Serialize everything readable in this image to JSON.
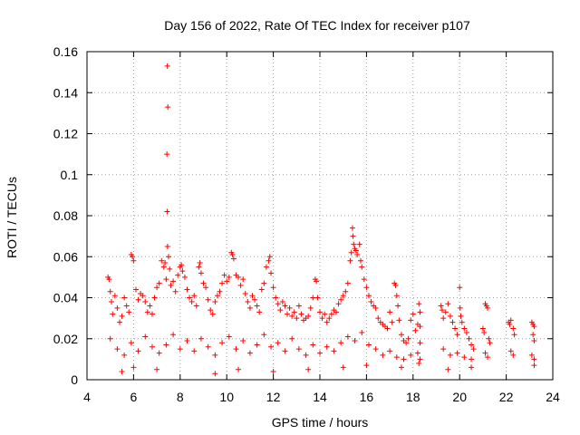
{
  "chart_data": {
    "type": "scatter",
    "title": "Day 156 of 2022, Rate Of TEC Index for receiver p107",
    "xlabel": "GPS time / hours",
    "ylabel": "ROTI / TECUs",
    "xlim": [
      4,
      24
    ],
    "ylim": [
      0,
      0.16
    ],
    "xticks": [
      4,
      6,
      8,
      10,
      12,
      14,
      16,
      18,
      20,
      22,
      24
    ],
    "yticks": [
      0,
      0.02,
      0.04,
      0.06,
      0.08,
      0.1,
      0.12,
      0.14,
      0.16
    ],
    "xtick_labels": [
      "4",
      "6",
      "8",
      "10",
      "12",
      "14",
      "16",
      "18",
      "20",
      "22",
      "24"
    ],
    "ytick_labels": [
      "0",
      "0.02",
      "0.04",
      "0.06",
      "0.08",
      "0.1",
      "0.12",
      "0.14",
      "0.16"
    ],
    "grid": true,
    "marker": "+",
    "color": "#ff0000",
    "series": [
      {
        "name": "ROTI",
        "points": [
          [
            4.9,
            0.05
          ],
          [
            4.95,
            0.049
          ],
          [
            5.0,
            0.043
          ],
          [
            5.05,
            0.038
          ],
          [
            5.1,
            0.032
          ],
          [
            5.2,
            0.041
          ],
          [
            5.3,
            0.035
          ],
          [
            5.4,
            0.028
          ],
          [
            5.5,
            0.031
          ],
          [
            5.6,
            0.04
          ],
          [
            5.7,
            0.036
          ],
          [
            5.8,
            0.033
          ],
          [
            5.9,
            0.061
          ],
          [
            5.95,
            0.06
          ],
          [
            6.0,
            0.058
          ],
          [
            6.1,
            0.044
          ],
          [
            6.2,
            0.039
          ],
          [
            6.3,
            0.042
          ],
          [
            6.4,
            0.041
          ],
          [
            6.5,
            0.038
          ],
          [
            6.6,
            0.033
          ],
          [
            6.7,
            0.036
          ],
          [
            6.8,
            0.032
          ],
          [
            6.9,
            0.04
          ],
          [
            7.0,
            0.045
          ],
          [
            7.1,
            0.047
          ],
          [
            7.2,
            0.058
          ],
          [
            7.3,
            0.055
          ],
          [
            7.35,
            0.057
          ],
          [
            7.4,
            0.049
          ],
          [
            7.45,
            0.153
          ],
          [
            7.47,
            0.133
          ],
          [
            7.43,
            0.11
          ],
          [
            7.44,
            0.082
          ],
          [
            7.46,
            0.065
          ],
          [
            7.5,
            0.06
          ],
          [
            7.55,
            0.054
          ],
          [
            7.6,
            0.046
          ],
          [
            7.7,
            0.048
          ],
          [
            7.8,
            0.043
          ],
          [
            7.9,
            0.051
          ],
          [
            8.0,
            0.055
          ],
          [
            8.05,
            0.056
          ],
          [
            8.1,
            0.053
          ],
          [
            8.2,
            0.05
          ],
          [
            8.3,
            0.044
          ],
          [
            8.4,
            0.04
          ],
          [
            8.5,
            0.038
          ],
          [
            8.6,
            0.041
          ],
          [
            8.7,
            0.036
          ],
          [
            8.8,
            0.055
          ],
          [
            8.85,
            0.057
          ],
          [
            8.9,
            0.052
          ],
          [
            9.0,
            0.047
          ],
          [
            9.1,
            0.045
          ],
          [
            9.2,
            0.039
          ],
          [
            9.3,
            0.034
          ],
          [
            9.4,
            0.032
          ],
          [
            9.5,
            0.038
          ],
          [
            9.6,
            0.041
          ],
          [
            9.7,
            0.043
          ],
          [
            9.8,
            0.047
          ],
          [
            9.9,
            0.051
          ],
          [
            10.0,
            0.048
          ],
          [
            10.1,
            0.05
          ],
          [
            10.2,
            0.062
          ],
          [
            10.25,
            0.061
          ],
          [
            10.3,
            0.059
          ],
          [
            10.4,
            0.051
          ],
          [
            10.5,
            0.05
          ],
          [
            10.6,
            0.046
          ],
          [
            10.7,
            0.049
          ],
          [
            10.8,
            0.042
          ],
          [
            10.9,
            0.038
          ],
          [
            11.0,
            0.035
          ],
          [
            11.1,
            0.041
          ],
          [
            11.2,
            0.039
          ],
          [
            11.3,
            0.036
          ],
          [
            11.4,
            0.033
          ],
          [
            11.5,
            0.044
          ],
          [
            11.6,
            0.047
          ],
          [
            11.7,
            0.055
          ],
          [
            11.8,
            0.058
          ],
          [
            11.85,
            0.06
          ],
          [
            11.9,
            0.052
          ],
          [
            12.0,
            0.045
          ],
          [
            12.1,
            0.04
          ],
          [
            12.2,
            0.037
          ],
          [
            12.3,
            0.034
          ],
          [
            12.4,
            0.038
          ],
          [
            12.5,
            0.036
          ],
          [
            12.6,
            0.032
          ],
          [
            12.7,
            0.035
          ],
          [
            12.8,
            0.031
          ],
          [
            12.9,
            0.033
          ],
          [
            13.0,
            0.03
          ],
          [
            13.1,
            0.036
          ],
          [
            13.2,
            0.032
          ],
          [
            13.3,
            0.029
          ],
          [
            13.4,
            0.03
          ],
          [
            13.5,
            0.031
          ],
          [
            13.6,
            0.035
          ],
          [
            13.7,
            0.04
          ],
          [
            13.8,
            0.049
          ],
          [
            13.85,
            0.048
          ],
          [
            13.9,
            0.04
          ],
          [
            14.0,
            0.033
          ],
          [
            14.1,
            0.03
          ],
          [
            14.2,
            0.032
          ],
          [
            14.3,
            0.028
          ],
          [
            14.4,
            0.03
          ],
          [
            14.5,
            0.032
          ],
          [
            14.6,
            0.034
          ],
          [
            14.7,
            0.033
          ],
          [
            14.8,
            0.037
          ],
          [
            14.9,
            0.039
          ],
          [
            15.0,
            0.041
          ],
          [
            15.1,
            0.043
          ],
          [
            15.2,
            0.047
          ],
          [
            15.3,
            0.058
          ],
          [
            15.35,
            0.062
          ],
          [
            15.4,
            0.074
          ],
          [
            15.42,
            0.07
          ],
          [
            15.45,
            0.066
          ],
          [
            15.5,
            0.064
          ],
          [
            15.55,
            0.063
          ],
          [
            15.6,
            0.061
          ],
          [
            15.7,
            0.066
          ],
          [
            15.75,
            0.058
          ],
          [
            15.8,
            0.055
          ],
          [
            15.9,
            0.049
          ],
          [
            16.0,
            0.045
          ],
          [
            16.1,
            0.041
          ],
          [
            16.2,
            0.038
          ],
          [
            16.3,
            0.036
          ],
          [
            16.4,
            0.035
          ],
          [
            16.5,
            0.03
          ],
          [
            16.6,
            0.028
          ],
          [
            16.7,
            0.027
          ],
          [
            16.8,
            0.026
          ],
          [
            16.9,
            0.025
          ],
          [
            17.0,
            0.033
          ],
          [
            17.1,
            0.028
          ],
          [
            17.2,
            0.047
          ],
          [
            17.25,
            0.046
          ],
          [
            17.3,
            0.041
          ],
          [
            17.35,
            0.036
          ],
          [
            17.4,
            0.029
          ],
          [
            17.5,
            0.022
          ],
          [
            17.6,
            0.019
          ],
          [
            17.7,
            0.018
          ],
          [
            17.8,
            0.02
          ],
          [
            17.9,
            0.029
          ],
          [
            18.0,
            0.032
          ],
          [
            18.1,
            0.024
          ],
          [
            18.2,
            0.027
          ],
          [
            18.3,
            0.026
          ],
          [
            18.3,
            0.033
          ],
          [
            18.25,
            0.037
          ],
          [
            18.3,
            0.018
          ],
          [
            18.3,
            0.01
          ],
          [
            18.25,
            0.008
          ],
          [
            19.2,
            0.036
          ],
          [
            19.25,
            0.034
          ],
          [
            19.3,
            0.03
          ],
          [
            19.4,
            0.033
          ],
          [
            19.5,
            0.037
          ],
          [
            19.6,
            0.031
          ],
          [
            19.7,
            0.028
          ],
          [
            19.8,
            0.025
          ],
          [
            19.9,
            0.022
          ],
          [
            20.0,
            0.045
          ],
          [
            20.02,
            0.035
          ],
          [
            20.05,
            0.031
          ],
          [
            20.1,
            0.028
          ],
          [
            20.2,
            0.025
          ],
          [
            20.3,
            0.023
          ],
          [
            20.4,
            0.02
          ],
          [
            20.5,
            0.017
          ],
          [
            20.6,
            0.015
          ],
          [
            21.0,
            0.025
          ],
          [
            21.05,
            0.023
          ],
          [
            21.1,
            0.037
          ],
          [
            21.15,
            0.036
          ],
          [
            21.2,
            0.035
          ],
          [
            21.25,
            0.02
          ],
          [
            21.3,
            0.018
          ],
          [
            22.1,
            0.028
          ],
          [
            22.15,
            0.027
          ],
          [
            22.2,
            0.029
          ],
          [
            22.3,
            0.025
          ],
          [
            22.35,
            0.022
          ],
          [
            23.1,
            0.028
          ],
          [
            23.15,
            0.027
          ],
          [
            23.2,
            0.026
          ],
          [
            23.15,
            0.022
          ],
          [
            23.2,
            0.019
          ],
          [
            5.0,
            0.02
          ],
          [
            5.3,
            0.015
          ],
          [
            5.6,
            0.012
          ],
          [
            5.9,
            0.018
          ],
          [
            6.2,
            0.014
          ],
          [
            6.5,
            0.021
          ],
          [
            6.8,
            0.016
          ],
          [
            7.1,
            0.013
          ],
          [
            7.4,
            0.017
          ],
          [
            7.7,
            0.022
          ],
          [
            8.0,
            0.015
          ],
          [
            8.3,
            0.019
          ],
          [
            8.6,
            0.014
          ],
          [
            8.9,
            0.02
          ],
          [
            9.2,
            0.016
          ],
          [
            9.5,
            0.012
          ],
          [
            9.8,
            0.018
          ],
          [
            10.1,
            0.021
          ],
          [
            10.4,
            0.015
          ],
          [
            10.7,
            0.019
          ],
          [
            11.0,
            0.013
          ],
          [
            11.3,
            0.017
          ],
          [
            11.6,
            0.022
          ],
          [
            11.9,
            0.016
          ],
          [
            12.2,
            0.018
          ],
          [
            12.5,
            0.014
          ],
          [
            12.8,
            0.02
          ],
          [
            13.1,
            0.015
          ],
          [
            13.4,
            0.012
          ],
          [
            13.7,
            0.017
          ],
          [
            14.0,
            0.013
          ],
          [
            14.3,
            0.016
          ],
          [
            14.6,
            0.014
          ],
          [
            14.9,
            0.018
          ],
          [
            15.2,
            0.021
          ],
          [
            15.5,
            0.019
          ],
          [
            15.8,
            0.023
          ],
          [
            16.1,
            0.017
          ],
          [
            16.4,
            0.015
          ],
          [
            16.7,
            0.012
          ],
          [
            17.0,
            0.014
          ],
          [
            17.3,
            0.011
          ],
          [
            17.6,
            0.01
          ],
          [
            17.9,
            0.012
          ],
          [
            18.2,
            0.013
          ],
          [
            19.3,
            0.015
          ],
          [
            19.6,
            0.012
          ],
          [
            19.9,
            0.013
          ],
          [
            20.2,
            0.011
          ],
          [
            20.5,
            0.01
          ],
          [
            21.1,
            0.013
          ],
          [
            21.2,
            0.011
          ],
          [
            22.2,
            0.014
          ],
          [
            22.3,
            0.012
          ],
          [
            23.1,
            0.012
          ],
          [
            23.2,
            0.01
          ],
          [
            5.5,
            0.004
          ],
          [
            6.0,
            0.006
          ],
          [
            7.0,
            0.005
          ],
          [
            9.5,
            0.003
          ],
          [
            10.5,
            0.005
          ],
          [
            12.0,
            0.004
          ],
          [
            13.5,
            0.005
          ],
          [
            15.0,
            0.006
          ],
          [
            16.0,
            0.007
          ],
          [
            17.5,
            0.006
          ],
          [
            19.5,
            0.005
          ],
          [
            20.5,
            0.006
          ],
          [
            23.2,
            0.007
          ]
        ]
      }
    ]
  }
}
